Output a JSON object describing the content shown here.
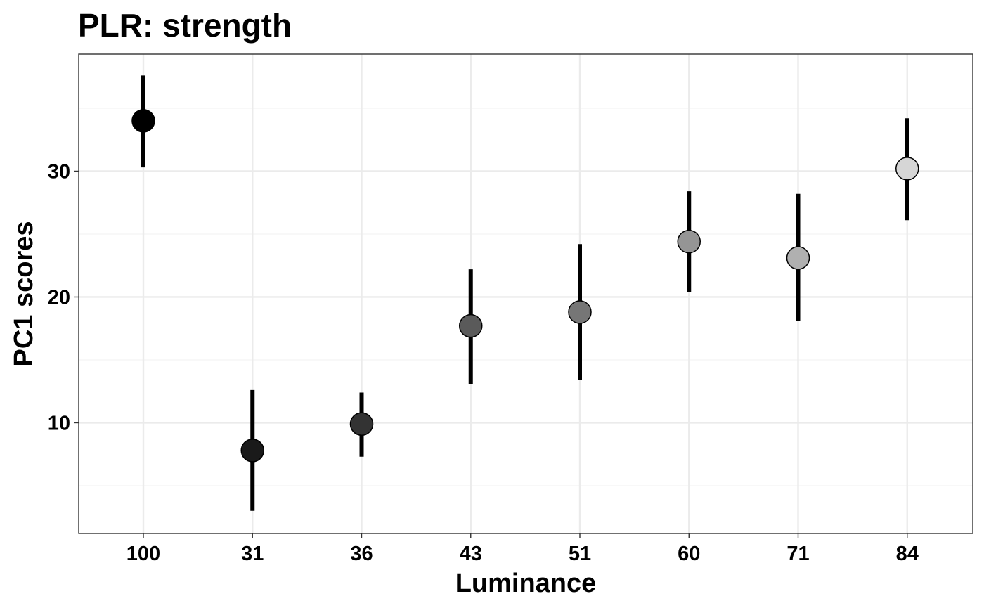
{
  "chart_data": {
    "type": "scatter",
    "title": "PLR: strength",
    "xlabel": "Luminance",
    "ylabel": "PC1 scores",
    "categories": [
      "100",
      "31",
      "36",
      "43",
      "51",
      "60",
      "71",
      "84"
    ],
    "series": [
      {
        "values": [
          34.0,
          7.8,
          9.9,
          17.7,
          18.8,
          24.4,
          23.1,
          30.2
        ],
        "lower": [
          30.3,
          3.0,
          7.3,
          13.1,
          13.4,
          20.4,
          18.1,
          26.1
        ],
        "upper": [
          37.6,
          12.6,
          12.4,
          22.2,
          24.2,
          28.4,
          28.2,
          34.2
        ],
        "fills": [
          "#000000",
          "#1a1a1a",
          "#333333",
          "#5a5a5a",
          "#767676",
          "#959595",
          "#b0b0b0",
          "#d6d6d6"
        ]
      }
    ],
    "ylim": [
      1.2,
      39.3
    ],
    "yticks": [
      10,
      20,
      30
    ],
    "grid": true,
    "legend": "none"
  },
  "colors": {
    "background": "#ffffff",
    "panel_border": "#333333",
    "grid_major": "#ebebeb",
    "grid_minor": "#f4f4f4",
    "error_bar": "#000000",
    "point_outline": "#000000"
  }
}
